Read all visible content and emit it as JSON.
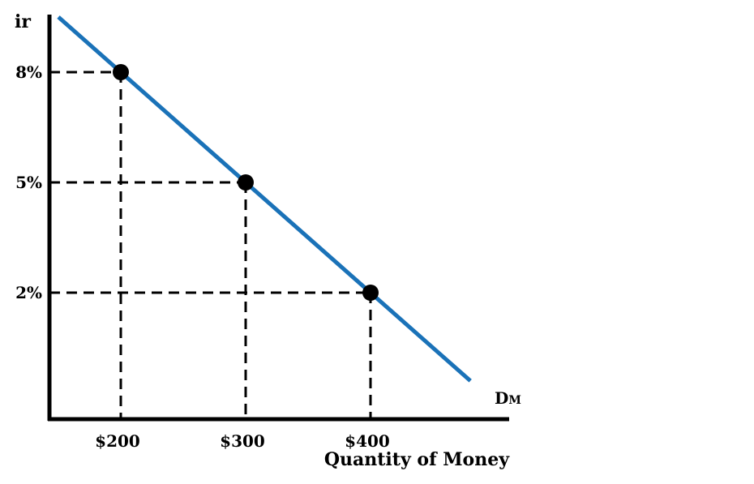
{
  "chart_data": {
    "type": "line",
    "ylabel": "ir",
    "xlabel": "Quantity of Money",
    "series": [
      {
        "name": "DM",
        "points": [
          [
            200,
            8
          ],
          [
            300,
            5
          ],
          [
            400,
            2
          ]
        ]
      }
    ],
    "highlighted_points": [
      [
        200,
        8
      ],
      [
        300,
        5
      ],
      [
        400,
        2
      ]
    ],
    "x_ticks": [
      {
        "value": 200,
        "label": "$200"
      },
      {
        "value": 300,
        "label": "$300"
      },
      {
        "value": 400,
        "label": "$400"
      }
    ],
    "y_ticks": [
      {
        "value": 8,
        "label": "8%"
      },
      {
        "value": 5,
        "label": "5%"
      },
      {
        "value": 2,
        "label": "2%"
      }
    ],
    "curve_label": {
      "main": "D",
      "sub": "M"
    },
    "grid": false,
    "guide_lines": "dashed",
    "colors": {
      "curve": "#1a72b8",
      "axes": "#000000",
      "points": "#000000"
    }
  }
}
